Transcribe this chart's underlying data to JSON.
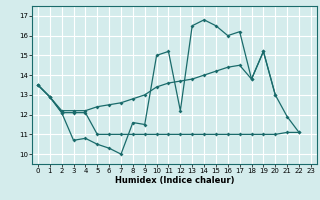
{
  "xlabel": "Humidex (Indice chaleur)",
  "xlim": [
    -0.5,
    23.5
  ],
  "ylim": [
    9.5,
    17.5
  ],
  "yticks": [
    10,
    11,
    12,
    13,
    14,
    15,
    16,
    17
  ],
  "xticks": [
    0,
    1,
    2,
    3,
    4,
    5,
    6,
    7,
    8,
    9,
    10,
    11,
    12,
    13,
    14,
    15,
    16,
    17,
    18,
    19,
    20,
    21,
    22,
    23
  ],
  "bg_color": "#d4ecec",
  "line_color": "#1a6b6b",
  "grid_color": "#ffffff",
  "curve1_y": [
    13.5,
    12.9,
    12.1,
    10.7,
    10.8,
    10.5,
    10.3,
    10.0,
    11.6,
    11.5,
    15.0,
    15.2,
    12.2,
    16.5,
    16.8,
    16.5,
    16.0,
    16.2,
    13.8,
    15.2,
    13.0,
    11.9,
    11.1,
    null
  ],
  "curve2_y": [
    13.5,
    12.9,
    12.2,
    12.2,
    12.2,
    12.4,
    12.5,
    12.6,
    12.8,
    13.0,
    13.4,
    13.6,
    13.7,
    13.8,
    14.0,
    14.2,
    14.4,
    14.5,
    13.8,
    15.2,
    13.0,
    null,
    null,
    null
  ],
  "curve3_y": [
    13.5,
    12.9,
    12.1,
    12.1,
    12.1,
    11.0,
    11.0,
    11.0,
    11.0,
    11.0,
    11.0,
    11.0,
    11.0,
    11.0,
    11.0,
    11.0,
    11.0,
    11.0,
    11.0,
    11.0,
    11.0,
    11.1,
    11.1,
    null
  ]
}
